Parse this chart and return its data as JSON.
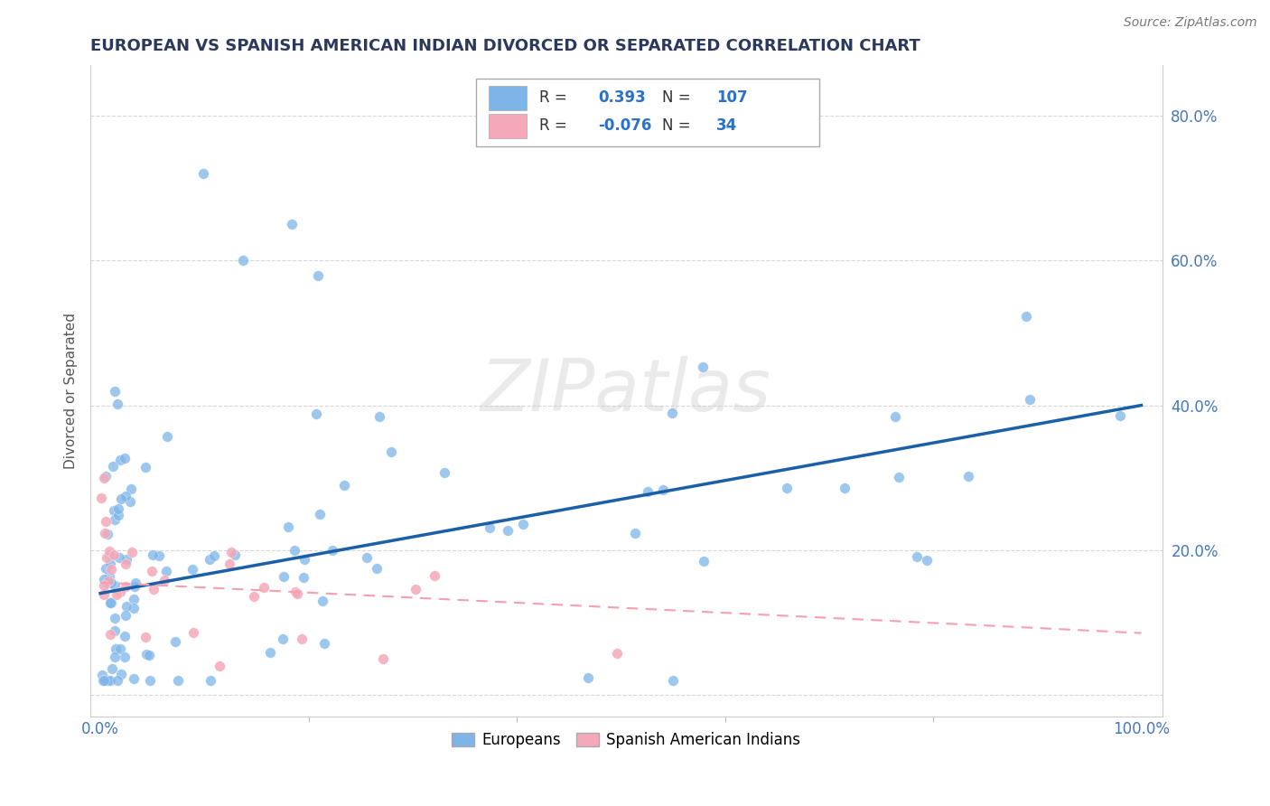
{
  "title": "EUROPEAN VS SPANISH AMERICAN INDIAN DIVORCED OR SEPARATED CORRELATION CHART",
  "source": "Source: ZipAtlas.com",
  "ylabel": "Divorced or Separated",
  "color_european": "#7EB5E8",
  "color_spanish": "#F4A8B8",
  "trendline_european": "#1A5FA8",
  "trendline_spanish": "#F4A0B0",
  "background_color": "#FFFFFF",
  "r_euro": "0.393",
  "n_euro": "107",
  "r_span": "-0.076",
  "n_span": "34",
  "euro_trend_x0": 0.0,
  "euro_trend_y0": 0.14,
  "euro_trend_x1": 1.0,
  "euro_trend_y1": 0.4,
  "span_trend_x0": 0.0,
  "span_trend_y0": 0.155,
  "span_trend_x1": 1.0,
  "span_trend_y1": 0.085,
  "xlim_min": -0.01,
  "xlim_max": 1.02,
  "ylim_min": -0.03,
  "ylim_max": 0.87,
  "yticks": [
    0.0,
    0.2,
    0.4,
    0.6,
    0.8
  ],
  "ytick_labels_right": [
    "",
    "20.0%",
    "40.0%",
    "60.0%",
    "80.0%"
  ],
  "xtick_labels": [
    "0.0%",
    "100.0%"
  ]
}
